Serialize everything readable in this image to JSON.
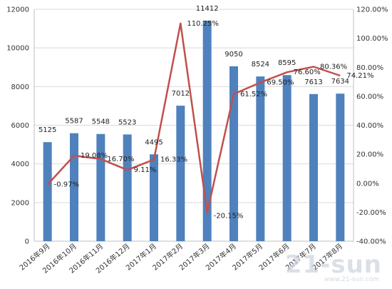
{
  "chart_data": {
    "type": "bar",
    "categories": [
      "2016年9月",
      "2016年10月",
      "2016年11月",
      "2016年12月",
      "2017年1月",
      "2017年2月",
      "2017年3月",
      "2017年4月",
      "2017年5月",
      "2017年6月",
      "2017年7月",
      "2017年8月"
    ],
    "series": [
      {
        "type": "bar",
        "axis": "left",
        "color": "#4f81bd",
        "values": [
          5125,
          5587,
          5548,
          5523,
          4495,
          7012,
          11412,
          9050,
          8524,
          8595,
          7613,
          7634
        ],
        "labels": [
          "5125",
          "5587",
          "5548",
          "5523",
          "4495",
          "7012",
          "11412",
          "9050",
          "8524",
          "8595",
          "7613",
          "7634"
        ]
      },
      {
        "type": "line",
        "axis": "right",
        "color": "#c0504d",
        "values": [
          -0.97,
          19.08,
          16.7,
          9.11,
          16.33,
          110.25,
          -20.15,
          61.52,
          69.5,
          76.6,
          80.36,
          74.21
        ],
        "labels": [
          "-0.97%",
          "19.08%",
          "16.70%",
          "9.11%",
          "16.33%",
          "110.25%",
          "-20.15%",
          "61.52%",
          "69.50%",
          "76.60%",
          "80.36%",
          "74.21%"
        ]
      }
    ],
    "y_left": {
      "ylim": [
        0,
        12000
      ],
      "ticks": [
        "0",
        "2000",
        "4000",
        "6000",
        "8000",
        "10000",
        "12000"
      ]
    },
    "y_right": {
      "ylim": [
        -40,
        120
      ],
      "ticks": [
        "-40.00%",
        "-20.00%",
        "0.00%",
        "20.00%",
        "40.00%",
        "60.00%",
        "80.00%",
        "100.00%",
        "120.00%"
      ]
    },
    "grid": true,
    "legend": "none",
    "title": "",
    "xlabel": "",
    "ylabel": ""
  },
  "watermark": {
    "main": "21-sun",
    "sub": "www.21-sun.com"
  }
}
